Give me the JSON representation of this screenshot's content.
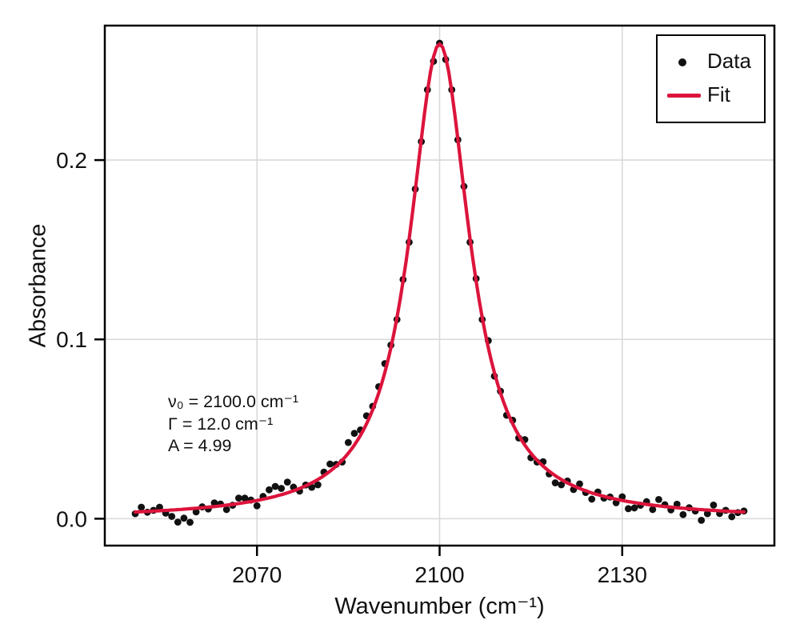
{
  "colors": {
    "fit": "#DC143C",
    "data": "#111111",
    "grid": "#d9d9d9",
    "axis": "#000000",
    "background": "#ffffff"
  },
  "chart_data": {
    "type": "scatter",
    "title": "",
    "xlabel": "Wavenumber (cm⁻¹)",
    "ylabel": "Absorbance",
    "xlim": [
      2045,
      2155
    ],
    "ylim": [
      -0.015,
      0.275
    ],
    "xticks": [
      2070,
      2100,
      2130
    ],
    "xticklabels": [
      "2070",
      "2100",
      "2130"
    ],
    "yticks": [
      0.0,
      0.1,
      0.2
    ],
    "yticklabels": [
      "0.0",
      "0.1",
      "0.2"
    ],
    "grid": true,
    "legend": {
      "position": "upper right",
      "entries": [
        {
          "label": "Data",
          "marker": "dot"
        },
        {
          "label": "Fit",
          "marker": "line"
        }
      ]
    },
    "annotation": {
      "lines": [
        "ν₀ = 2100.0 cm⁻¹",
        "Γ = 12.0 cm⁻¹",
        "A = 4.99"
      ]
    },
    "series": [
      {
        "name": "Data",
        "kind": "scatter",
        "x": [
          2050,
          2051,
          2052,
          2053,
          2054,
          2055,
          2056,
          2057,
          2058,
          2059,
          2060,
          2061,
          2062,
          2063,
          2064,
          2065,
          2066,
          2067,
          2068,
          2069,
          2070,
          2071,
          2072,
          2073,
          2074,
          2075,
          2076,
          2077,
          2078,
          2079,
          2080,
          2081,
          2082,
          2083,
          2084,
          2085,
          2086,
          2087,
          2088,
          2089,
          2090,
          2091,
          2092,
          2093,
          2094,
          2095,
          2096,
          2097,
          2098,
          2099,
          2100,
          2101,
          2102,
          2103,
          2104,
          2105,
          2106,
          2107,
          2108,
          2109,
          2110,
          2111,
          2112,
          2113,
          2114,
          2115,
          2116,
          2117,
          2118,
          2119,
          2120,
          2121,
          2122,
          2123,
          2124,
          2125,
          2126,
          2127,
          2128,
          2129,
          2130,
          2131,
          2132,
          2133,
          2134,
          2135,
          2136,
          2137,
          2138,
          2139,
          2140,
          2141,
          2142,
          2143,
          2144,
          2145,
          2146,
          2147,
          2148,
          2149,
          2150
        ],
        "y": [
          0.0028,
          0.0064,
          0.0036,
          0.0047,
          0.0064,
          0.0031,
          0.0013,
          -0.0019,
          0.0003,
          -0.002,
          0.0038,
          0.0066,
          0.0054,
          0.0088,
          0.0082,
          0.0051,
          0.0075,
          0.0115,
          0.0115,
          0.0104,
          0.0072,
          0.0124,
          0.0161,
          0.018,
          0.0169,
          0.0204,
          0.0176,
          0.0154,
          0.0188,
          0.0175,
          0.0189,
          0.026,
          0.0305,
          0.0303,
          0.0316,
          0.0425,
          0.0476,
          0.0495,
          0.0574,
          0.0627,
          0.0736,
          0.0865,
          0.0968,
          0.1111,
          0.1334,
          0.1542,
          0.1838,
          0.2103,
          0.2392,
          0.2551,
          0.2652,
          0.2561,
          0.2392,
          0.2113,
          0.1853,
          0.1542,
          0.1339,
          0.1111,
          0.0993,
          0.0795,
          0.0711,
          0.0577,
          0.0549,
          0.045,
          0.0441,
          0.034,
          0.0316,
          0.0318,
          0.025,
          0.02,
          0.0189,
          0.021,
          0.0163,
          0.0194,
          0.0146,
          0.0109,
          0.0149,
          0.0115,
          0.0121,
          0.0089,
          0.0122,
          0.0056,
          0.006,
          0.0075,
          0.0095,
          0.0051,
          0.0107,
          0.0078,
          0.0049,
          0.0081,
          0.0023,
          0.0061,
          0.0043,
          -0.0009,
          0.0028,
          0.0076,
          0.0029,
          0.0047,
          0.0011,
          0.0034,
          0.0043
        ]
      },
      {
        "name": "Fit",
        "kind": "line",
        "model": "lorentzian",
        "params": {
          "nu0": 2100.0,
          "gamma": 12.0,
          "area": 4.99
        },
        "x_step": 0.5
      }
    ]
  }
}
